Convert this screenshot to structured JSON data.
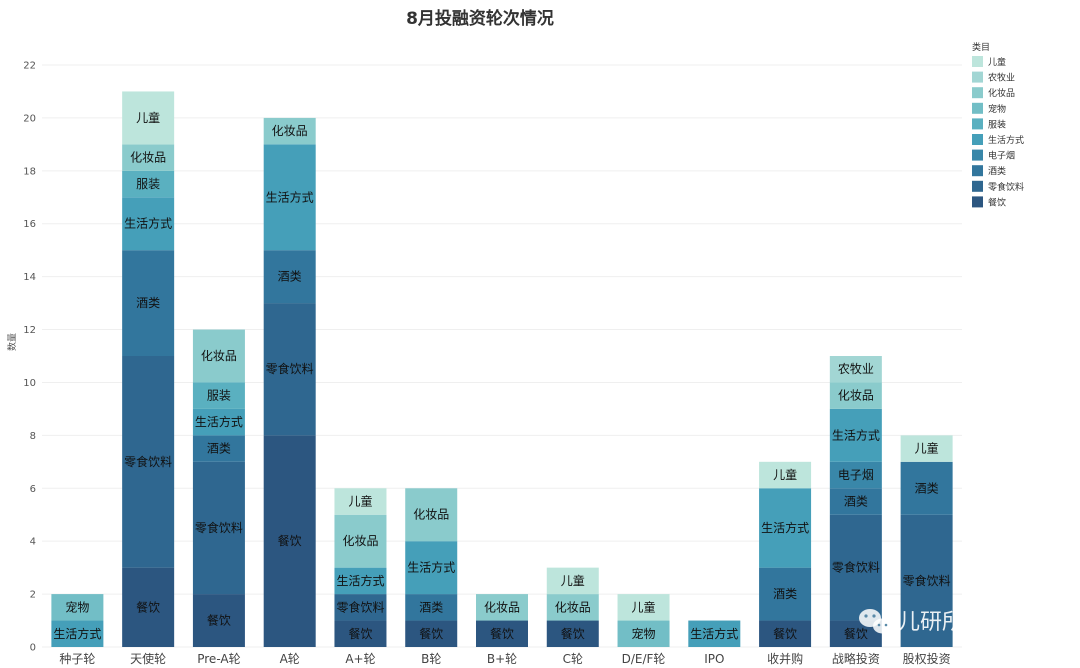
{
  "chart_data": {
    "type": "bar",
    "stacked": true,
    "title": "8月投融资轮次情况",
    "ylabel": "数量",
    "xlabel": "",
    "ylim": [
      0,
      22
    ],
    "yticks": [
      0,
      2,
      4,
      6,
      8,
      10,
      12,
      14,
      16,
      18,
      20,
      22
    ],
    "grid": true,
    "legend_title": "类目",
    "legend_position": "top-right",
    "categories": [
      "种子轮",
      "天使轮",
      "Pre-A轮",
      "A轮",
      "A+轮",
      "B轮",
      "B+轮",
      "C轮",
      "D/E/F轮",
      "IPO",
      "收并购",
      "战略投资",
      "股权投资"
    ],
    "series": [
      {
        "name": "餐饮",
        "color": "#2c5680",
        "values": [
          0,
          3,
          2,
          8,
          1,
          1,
          1,
          1,
          0,
          0,
          1,
          1,
          0
        ]
      },
      {
        "name": "零食饮料",
        "color": "#2f6790",
        "values": [
          0,
          8,
          5,
          5,
          1,
          0,
          0,
          0,
          0,
          0,
          0,
          4,
          5
        ]
      },
      {
        "name": "酒类",
        "color": "#32769d",
        "values": [
          0,
          4,
          1,
          2,
          0,
          1,
          0,
          0,
          0,
          0,
          2,
          1,
          2
        ]
      },
      {
        "name": "电子烟",
        "color": "#3987a9",
        "values": [
          0,
          0,
          0,
          0,
          0,
          0,
          0,
          0,
          0,
          0,
          0,
          1,
          0
        ]
      },
      {
        "name": "生活方式",
        "color": "#459fb9",
        "values": [
          1,
          2,
          1,
          4,
          1,
          2,
          0,
          0,
          0,
          1,
          3,
          2,
          0
        ]
      },
      {
        "name": "服装",
        "color": "#5ab0c0",
        "values": [
          0,
          1,
          1,
          0,
          0,
          0,
          0,
          0,
          0,
          0,
          0,
          0,
          0
        ]
      },
      {
        "name": "宠物",
        "color": "#72bec6",
        "values": [
          1,
          0,
          0,
          0,
          0,
          0,
          0,
          0,
          1,
          0,
          0,
          0,
          0
        ]
      },
      {
        "name": "化妆品",
        "color": "#8acbcc",
        "values": [
          0,
          1,
          2,
          1,
          2,
          2,
          1,
          1,
          0,
          0,
          0,
          1,
          0
        ]
      },
      {
        "name": "农牧业",
        "color": "#a2d6d4",
        "values": [
          0,
          0,
          0,
          0,
          0,
          0,
          0,
          0,
          0,
          0,
          0,
          1,
          0
        ]
      },
      {
        "name": "儿童",
        "color": "#bde5dc",
        "values": [
          0,
          2,
          0,
          0,
          1,
          0,
          0,
          1,
          1,
          0,
          1,
          0,
          1
        ]
      }
    ]
  },
  "watermark": {
    "text": "儿研所Club",
    "icon": "wechat-icon"
  }
}
